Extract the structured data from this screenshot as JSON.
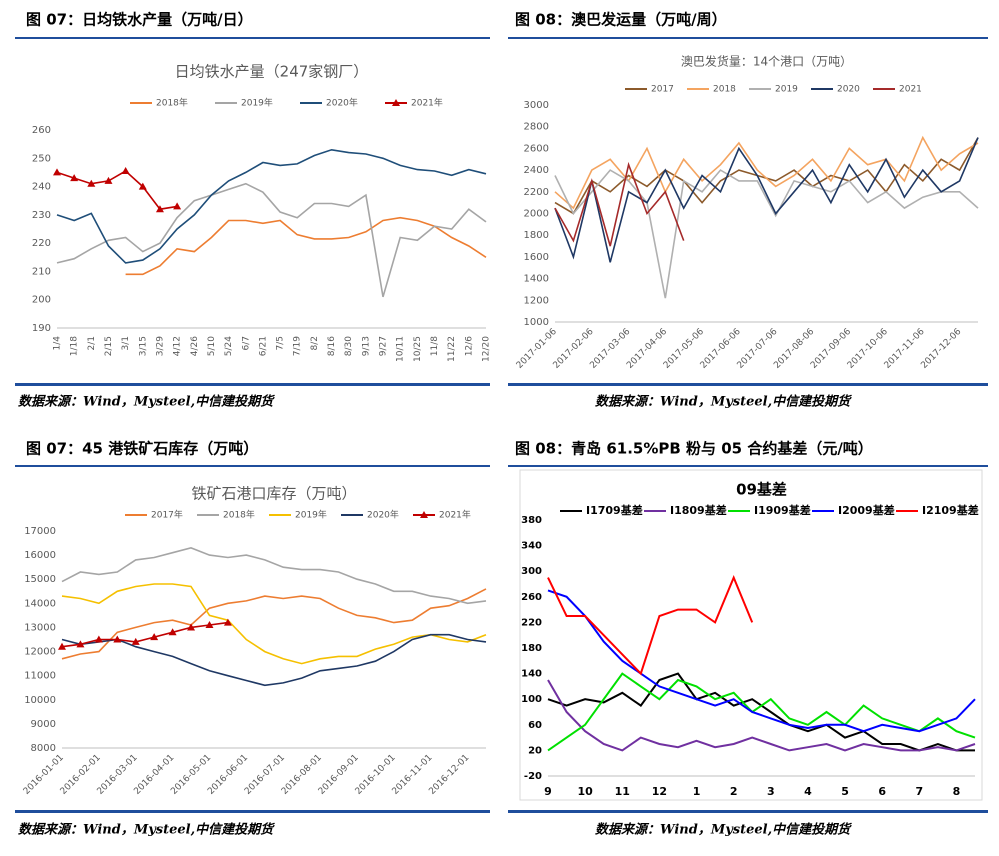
{
  "panels": [
    {
      "heading": "图 07：日均铁水产量（万吨/日）",
      "source": "数据来源：Wind，Mysteel,中信建投期货"
    },
    {
      "heading": "图 08：澳巴发运量（万吨/周）",
      "source": "数据来源：Wind，Mysteel,中信建投期货"
    },
    {
      "heading": "图 07：45 港铁矿石库存（万吨）",
      "source": "数据来源：Wind，Mysteel,中信建投期货"
    },
    {
      "heading": "图 08：青岛 61.5%PB 粉与 05 合约基差（元/吨）",
      "source": "数据来源：Wind，Mysteel,中信建投期货"
    }
  ],
  "chart_data": [
    {
      "type": "line",
      "title": "日均铁水产量（247家钢厂）",
      "categories": [
        "1/4",
        "1/18",
        "2/1",
        "2/15",
        "3/1",
        "3/15",
        "3/29",
        "4/12",
        "4/26",
        "5/10",
        "5/24",
        "6/7",
        "6/21",
        "7/5",
        "7/19",
        "8/2",
        "8/16",
        "8/30",
        "9/13",
        "9/27",
        "10/11",
        "10/25",
        "11/8",
        "11/22",
        "12/6",
        "12/20"
      ],
      "ylim": [
        190,
        260
      ],
      "yticks": [
        190,
        200,
        210,
        220,
        230,
        240,
        250,
        260
      ],
      "grid": false,
      "series": [
        {
          "name": "2018年",
          "color": "#ed7d31",
          "values": [
            null,
            null,
            null,
            null,
            209,
            209,
            212,
            218,
            217,
            222,
            228,
            228,
            227,
            228,
            223,
            221.5,
            221.5,
            222,
            224,
            228,
            229,
            228,
            226,
            222,
            219,
            215
          ]
        },
        {
          "name": "2019年",
          "color": "#a5a5a5",
          "values": [
            213,
            214.5,
            218,
            221,
            222,
            217,
            220,
            229,
            235,
            237,
            239,
            241,
            238,
            231,
            229,
            234,
            234,
            233,
            237,
            201,
            222,
            221,
            226,
            225,
            232,
            227.5
          ]
        },
        {
          "name": "2020年",
          "color": "#1f4e79",
          "values": [
            230,
            228,
            230.5,
            219,
            213,
            214,
            218,
            225,
            230,
            237,
            242,
            245,
            248.5,
            247.5,
            248,
            251,
            253,
            252,
            251.5,
            250,
            247.5,
            246,
            245.5,
            244,
            246,
            244.5
          ]
        },
        {
          "name": "2021年",
          "color": "#c00000",
          "marker": "triangle",
          "values": [
            245,
            243,
            241,
            242,
            245.5,
            240,
            232,
            233,
            null,
            null,
            null,
            null,
            null,
            null,
            null,
            null,
            null,
            null,
            null,
            null,
            null,
            null,
            null,
            null,
            null,
            null
          ]
        }
      ]
    },
    {
      "type": "line",
      "title": "澳巴发货量：14个港口（万吨）",
      "categories": [
        "2017-01-06",
        null,
        "2017-02-06",
        null,
        "2017-03-06",
        null,
        "2017-04-06",
        null,
        "2017-05-06",
        null,
        "2017-06-06",
        null,
        "2017-07-06",
        null,
        "2017-08-06",
        null,
        "2017-09-06",
        null,
        "2017-10-06",
        null,
        "2017-11-06",
        null,
        "2017-12-06",
        null
      ],
      "ylim": [
        1000,
        3000
      ],
      "yticks": [
        1000,
        1200,
        1400,
        1600,
        1800,
        2000,
        2200,
        2400,
        2600,
        2800,
        3000
      ],
      "grid": false,
      "series": [
        {
          "name": "2017",
          "color": "#8c5a2b",
          "values": [
            2100,
            2000,
            2300,
            2200,
            2350,
            2250,
            2400,
            2300,
            2100,
            2300,
            2400,
            2350,
            2300,
            2400,
            2250,
            2350,
            2300,
            2400,
            2200,
            2450,
            2300,
            2500,
            2400,
            2700
          ]
        },
        {
          "name": "2018",
          "color": "#f4a460",
          "values": [
            2200,
            2050,
            2400,
            2500,
            2300,
            2600,
            2200,
            2500,
            2300,
            2450,
            2650,
            2400,
            2250,
            2350,
            2500,
            2300,
            2600,
            2450,
            2500,
            2300,
            2700,
            2400,
            2550,
            2650
          ]
        },
        {
          "name": "2019",
          "color": "#b0b0b0",
          "values": [
            2350,
            2000,
            2200,
            2400,
            2300,
            2100,
            1220,
            2300,
            2200,
            2400,
            2300,
            2300,
            1980,
            2300,
            2250,
            2200,
            2300,
            2100,
            2200,
            2050,
            2150,
            2200,
            2200,
            2050
          ]
        },
        {
          "name": "2020",
          "color": "#1f3864",
          "values": [
            2050,
            1600,
            2300,
            1550,
            2200,
            2100,
            2400,
            2050,
            2350,
            2200,
            2600,
            2350,
            2000,
            2200,
            2400,
            2100,
            2450,
            2200,
            2500,
            2150,
            2400,
            2200,
            2300,
            2700
          ]
        },
        {
          "name": "2021",
          "color": "#a52a2a",
          "values": [
            2050,
            1750,
            2300,
            1700,
            2450,
            2000,
            2200,
            1750,
            null,
            null,
            null,
            null,
            null,
            null,
            null,
            null,
            null,
            null,
            null,
            null,
            null,
            null,
            null,
            null
          ]
        }
      ]
    },
    {
      "type": "line",
      "title": "铁矿石港口库存（万吨）",
      "categories": [
        "2016-01-01",
        null,
        "2016-02-01",
        null,
        "2016-03-01",
        null,
        "2016-04-01",
        null,
        "2016-05-01",
        null,
        "2016-06-01",
        null,
        "2016-07-01",
        null,
        "2016-08-01",
        null,
        "2016-09-01",
        null,
        "2016-10-01",
        null,
        "2016-11-01",
        null,
        "2016-12-01",
        null
      ],
      "ylim": [
        8000,
        17000
      ],
      "yticks": [
        8000,
        9000,
        10000,
        11000,
        12000,
        13000,
        14000,
        15000,
        16000,
        17000
      ],
      "grid": false,
      "series": [
        {
          "name": "2017年",
          "color": "#ed7d31",
          "values": [
            11700,
            11900,
            12000,
            12800,
            13000,
            13200,
            13300,
            13100,
            13800,
            14000,
            14100,
            14300,
            14200,
            14300,
            14200,
            13800,
            13500,
            13400,
            13200,
            13300,
            13800,
            13900,
            14200,
            14600
          ]
        },
        {
          "name": "2018年",
          "color": "#a5a5a5",
          "values": [
            14900,
            15300,
            15200,
            15300,
            15800,
            15900,
            16100,
            16300,
            16000,
            15900,
            16000,
            15800,
            15500,
            15400,
            15400,
            15300,
            15000,
            14800,
            14500,
            14500,
            14300,
            14200,
            14000,
            14100
          ]
        },
        {
          "name": "2019年",
          "color": "#f5c000",
          "values": [
            14300,
            14200,
            14000,
            14500,
            14700,
            14800,
            14800,
            14700,
            13500,
            13300,
            12500,
            12000,
            11700,
            11500,
            11700,
            11800,
            11800,
            12100,
            12300,
            12600,
            12700,
            12500,
            12400,
            12700
          ]
        },
        {
          "name": "2020年",
          "color": "#1f3864",
          "values": [
            12500,
            12300,
            12400,
            12500,
            12200,
            12000,
            11800,
            11500,
            11200,
            11000,
            10800,
            10600,
            10700,
            10900,
            11200,
            11300,
            11400,
            11600,
            12000,
            12500,
            12700,
            12700,
            12500,
            12400
          ]
        },
        {
          "name": "2021年",
          "color": "#c00000",
          "marker": "triangle",
          "values": [
            12200,
            12300,
            12500,
            12500,
            12400,
            12600,
            12800,
            13000,
            13100,
            13200,
            null,
            null,
            null,
            null,
            null,
            null,
            null,
            null,
            null,
            null,
            null,
            null,
            null,
            null
          ]
        }
      ]
    },
    {
      "type": "line",
      "title": "09基差",
      "categories": [
        "9",
        null,
        "10",
        null,
        "11",
        null,
        "12",
        null,
        "1",
        null,
        "2",
        null,
        "3",
        null,
        "4",
        null,
        "5",
        null,
        "6",
        null,
        "7",
        null,
        "8",
        null
      ],
      "ylim": [
        -20,
        380
      ],
      "yticks": [
        -20,
        20,
        60,
        100,
        140,
        180,
        220,
        260,
        300,
        340,
        380
      ],
      "grid": false,
      "series": [
        {
          "name": "I1709基差",
          "color": "#000000",
          "values": [
            100,
            90,
            100,
            95,
            110,
            90,
            130,
            140,
            100,
            110,
            90,
            100,
            80,
            60,
            50,
            60,
            40,
            50,
            30,
            30,
            20,
            30,
            20,
            20
          ]
        },
        {
          "name": "I1809基差",
          "color": "#7030a0",
          "values": [
            130,
            80,
            50,
            30,
            20,
            40,
            30,
            25,
            35,
            25,
            30,
            40,
            30,
            20,
            25,
            30,
            20,
            30,
            25,
            20,
            20,
            25,
            20,
            30
          ]
        },
        {
          "name": "I1909基差",
          "color": "#00e000",
          "values": [
            20,
            40,
            60,
            100,
            140,
            120,
            100,
            130,
            120,
            100,
            110,
            80,
            100,
            70,
            60,
            80,
            60,
            90,
            70,
            60,
            50,
            70,
            50,
            40
          ]
        },
        {
          "name": "I2009基差",
          "color": "#0000ff",
          "values": [
            270,
            260,
            230,
            190,
            160,
            140,
            120,
            110,
            100,
            90,
            100,
            80,
            70,
            60,
            55,
            60,
            60,
            50,
            60,
            55,
            50,
            60,
            70,
            100
          ]
        },
        {
          "name": "I2109基差",
          "color": "#ff0000",
          "values": [
            290,
            230,
            230,
            200,
            170,
            140,
            230,
            240,
            240,
            220,
            290,
            220,
            null,
            null,
            null,
            null,
            null,
            null,
            null,
            null,
            null,
            null,
            null,
            null
          ]
        }
      ]
    }
  ]
}
